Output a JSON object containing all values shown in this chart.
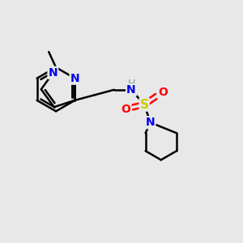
{
  "bg_color": "#e8e8e8",
  "atom_colors": {
    "C": "#000000",
    "N": "#0000ee",
    "S": "#cccc00",
    "O": "#ff0000",
    "H": "#6a9f9f"
  },
  "bond_color": "#000000",
  "bond_width": 1.8,
  "fig_size": [
    3.0,
    3.0
  ],
  "dpi": 100,
  "xlim": [
    0,
    10
  ],
  "ylim": [
    0,
    10
  ]
}
